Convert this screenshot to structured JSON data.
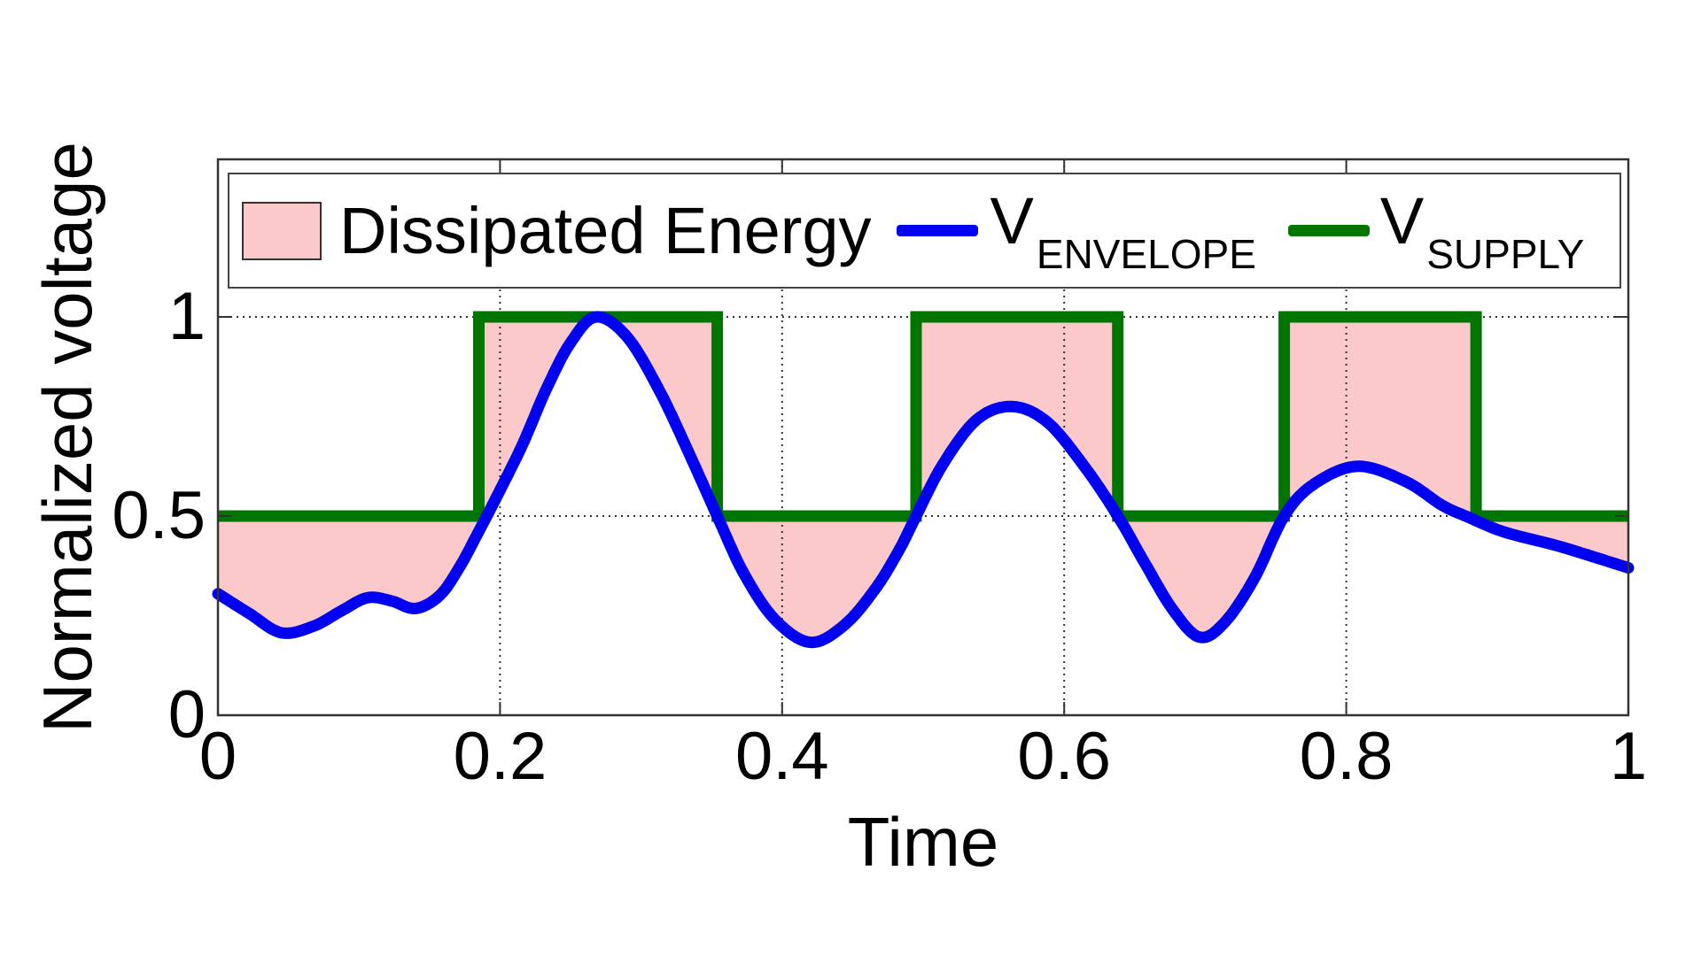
{
  "legend": {
    "items": [
      {
        "label": "Dissipated Energy",
        "swatch": "patch",
        "color": "#FBC9C9"
      },
      {
        "label_main": "V",
        "label_sub": "ENVELOPE",
        "swatch": "line",
        "color": "#0000F2"
      },
      {
        "label_main": "V",
        "label_sub": "SUPPLY",
        "swatch": "line",
        "color": "#007500"
      }
    ]
  },
  "chart_data": {
    "type": "area",
    "title": "",
    "xlabel": "Time",
    "ylabel": "Normalized voltage",
    "xlim": [
      0,
      1
    ],
    "ylim": [
      0,
      1.4
    ],
    "x_tick_values": [
      0,
      0.2,
      0.4,
      0.6,
      0.8,
      1
    ],
    "x_tick_labels": [
      "0",
      "0.2",
      "0.4",
      "0.6",
      "0.8",
      "1"
    ],
    "y_tick_values": [
      0,
      0.5,
      1
    ],
    "y_tick_labels": [
      "0",
      "0.5",
      "1"
    ],
    "grid": {
      "x_values": [
        0.2,
        0.4,
        0.6,
        0.8
      ],
      "y_values": [
        0.5,
        1
      ],
      "style": "dotted"
    },
    "legend_position": "top-inside",
    "colors": {
      "fill": "#FBC9C9",
      "envelope": "#0000F2",
      "supply": "#007500",
      "grid": "#333333",
      "axis": "#333333",
      "text": "#000000",
      "legend_border": "#444444"
    },
    "series": [
      {
        "name": "Dissipated Energy",
        "type": "area",
        "color": "#FBC9C9",
        "description": "Shaded region between V_SUPPLY and V_ENVELOPE where supply exceeds envelope"
      },
      {
        "name": "V_ENVELOPE",
        "type": "line",
        "color": "#0000F2",
        "line_width": 13,
        "points": [
          [
            0.0,
            0.305
          ],
          [
            0.022,
            0.256
          ],
          [
            0.045,
            0.207
          ],
          [
            0.068,
            0.224
          ],
          [
            0.088,
            0.263
          ],
          [
            0.106,
            0.295
          ],
          [
            0.123,
            0.287
          ],
          [
            0.14,
            0.268
          ],
          [
            0.157,
            0.3
          ],
          [
            0.171,
            0.37
          ],
          [
            0.185,
            0.462
          ],
          [
            0.2,
            0.565
          ],
          [
            0.216,
            0.68
          ],
          [
            0.233,
            0.82
          ],
          [
            0.25,
            0.935
          ],
          [
            0.268,
            1.0
          ],
          [
            0.29,
            0.95
          ],
          [
            0.313,
            0.815
          ],
          [
            0.335,
            0.65
          ],
          [
            0.354,
            0.5
          ],
          [
            0.373,
            0.355
          ],
          [
            0.395,
            0.24
          ],
          [
            0.42,
            0.183
          ],
          [
            0.444,
            0.226
          ],
          [
            0.466,
            0.317
          ],
          [
            0.483,
            0.415
          ],
          [
            0.495,
            0.5
          ],
          [
            0.514,
            0.63
          ],
          [
            0.538,
            0.742
          ],
          [
            0.563,
            0.775
          ],
          [
            0.588,
            0.736
          ],
          [
            0.614,
            0.626
          ],
          [
            0.638,
            0.5
          ],
          [
            0.657,
            0.383
          ],
          [
            0.677,
            0.265
          ],
          [
            0.696,
            0.196
          ],
          [
            0.714,
            0.234
          ],
          [
            0.735,
            0.345
          ],
          [
            0.756,
            0.5
          ],
          [
            0.777,
            0.58
          ],
          [
            0.808,
            0.625
          ],
          [
            0.842,
            0.587
          ],
          [
            0.868,
            0.527
          ],
          [
            0.886,
            0.498
          ],
          [
            0.912,
            0.46
          ],
          [
            0.952,
            0.423
          ],
          [
            1.0,
            0.37
          ]
        ]
      },
      {
        "name": "V_SUPPLY",
        "type": "line",
        "color": "#007500",
        "line_width": 13,
        "low_level": 0.5,
        "high_level": 1.0,
        "pulses": [
          [
            0.185,
            0.354
          ],
          [
            0.495,
            0.638
          ],
          [
            0.756,
            0.892
          ]
        ]
      }
    ]
  }
}
